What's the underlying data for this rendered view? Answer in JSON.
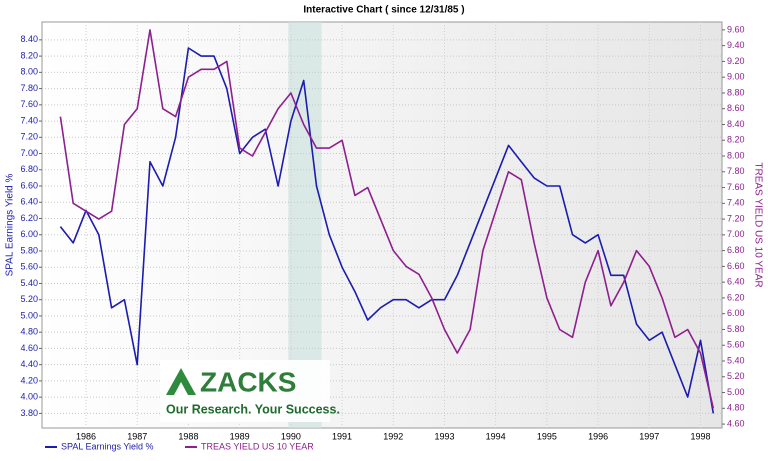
{
  "chart_data": {
    "type": "line",
    "title": "Interactive Chart ( since 12/31/85 )",
    "ylabel": "SPAL Earnings Yield %",
    "y2label": "TREAS YIELD US 10 YEAR",
    "annotations": [
      "ZACKS",
      "Our Research. Your Success."
    ],
    "highlight_range": [
      1990.45,
      1991.1
    ],
    "grid": true,
    "legend": "bottom",
    "x": [
      1986.0,
      1986.25,
      1986.5,
      1986.75,
      1987.0,
      1987.25,
      1987.5,
      1987.75,
      1988.0,
      1988.25,
      1988.5,
      1988.75,
      1989.0,
      1989.25,
      1989.5,
      1989.75,
      1990.0,
      1990.25,
      1990.5,
      1990.75,
      1991.0,
      1991.25,
      1991.5,
      1991.75,
      1992.0,
      1992.25,
      1992.5,
      1992.75,
      1993.0,
      1993.25,
      1993.5,
      1993.75,
      1994.0,
      1994.25,
      1994.5,
      1994.75,
      1995.0,
      1995.25,
      1995.5,
      1995.75,
      1996.0,
      1996.25,
      1996.5,
      1996.75,
      1997.0,
      1997.25,
      1997.5,
      1997.75,
      1998.0,
      1998.25,
      1998.5,
      1998.75
    ],
    "xlim": [
      1985.64,
      1998.92
    ],
    "xticks": [
      {
        "value": 1986.5,
        "label": "1986"
      },
      {
        "value": 1987.5,
        "label": "1987"
      },
      {
        "value": 1988.5,
        "label": "1988"
      },
      {
        "value": 1989.5,
        "label": "1989"
      },
      {
        "value": 1990.5,
        "label": "1990"
      },
      {
        "value": 1991.5,
        "label": "1991"
      },
      {
        "value": 1992.5,
        "label": "1992"
      },
      {
        "value": 1993.5,
        "label": "1993"
      },
      {
        "value": 1994.5,
        "label": "1994"
      },
      {
        "value": 1995.5,
        "label": "1995"
      },
      {
        "value": 1996.5,
        "label": "1996"
      },
      {
        "value": 1997.5,
        "label": "1997"
      },
      {
        "value": 1998.5,
        "label": "1998"
      }
    ],
    "ylim": [
      3.62,
      8.62
    ],
    "yticks": [
      {
        "value": 3.8,
        "label": "3.80"
      },
      {
        "value": 4.0,
        "label": "4.00"
      },
      {
        "value": 4.2,
        "label": "4.20"
      },
      {
        "value": 4.4,
        "label": "4.40"
      },
      {
        "value": 4.6,
        "label": "4.60"
      },
      {
        "value": 4.8,
        "label": "4.80"
      },
      {
        "value": 5.0,
        "label": "5.00"
      },
      {
        "value": 5.2,
        "label": "5.20"
      },
      {
        "value": 5.4,
        "label": "5.40"
      },
      {
        "value": 5.6,
        "label": "5.60"
      },
      {
        "value": 5.8,
        "label": "5.80"
      },
      {
        "value": 6.0,
        "label": "6.00"
      },
      {
        "value": 6.2,
        "label": "6.20"
      },
      {
        "value": 6.4,
        "label": "6.40"
      },
      {
        "value": 6.6,
        "label": "6.60"
      },
      {
        "value": 6.8,
        "label": "6.80"
      },
      {
        "value": 7.0,
        "label": "7.00"
      },
      {
        "value": 7.2,
        "label": "7.20"
      },
      {
        "value": 7.4,
        "label": "7.40"
      },
      {
        "value": 7.6,
        "label": "7.60"
      },
      {
        "value": 7.8,
        "label": "7.80"
      },
      {
        "value": 8.0,
        "label": "8.00"
      },
      {
        "value": 8.2,
        "label": "8.20"
      },
      {
        "value": 8.4,
        "label": "8.40"
      }
    ],
    "y2lim": [
      4.55,
      9.7
    ],
    "y2ticks": [
      {
        "value": 4.6,
        "label": "4.60"
      },
      {
        "value": 4.8,
        "label": "4.80"
      },
      {
        "value": 5.0,
        "label": "5.00"
      },
      {
        "value": 5.2,
        "label": "5.20"
      },
      {
        "value": 5.4,
        "label": "5.40"
      },
      {
        "value": 5.6,
        "label": "5.60"
      },
      {
        "value": 5.8,
        "label": "5.80"
      },
      {
        "value": 6.0,
        "label": "6.00"
      },
      {
        "value": 6.2,
        "label": "6.20"
      },
      {
        "value": 6.4,
        "label": "6.40"
      },
      {
        "value": 6.6,
        "label": "6.60"
      },
      {
        "value": 6.8,
        "label": "6.80"
      },
      {
        "value": 7.0,
        "label": "7.00"
      },
      {
        "value": 7.2,
        "label": "7.20"
      },
      {
        "value": 7.4,
        "label": "7.40"
      },
      {
        "value": 7.6,
        "label": "7.60"
      },
      {
        "value": 7.8,
        "label": "7.80"
      },
      {
        "value": 8.0,
        "label": "8.00"
      },
      {
        "value": 8.2,
        "label": "8.20"
      },
      {
        "value": 8.4,
        "label": "8.40"
      },
      {
        "value": 8.6,
        "label": "8.60"
      },
      {
        "value": 8.8,
        "label": "8.80"
      },
      {
        "value": 9.0,
        "label": "9.00"
      },
      {
        "value": 9.2,
        "label": "9.20"
      },
      {
        "value": 9.4,
        "label": "9.40"
      },
      {
        "value": 9.6,
        "label": "9.60"
      }
    ],
    "series": [
      {
        "name": "SPAL Earnings Yield %",
        "color": "#1c1cae",
        "values": [
          6.1,
          5.9,
          6.3,
          6.0,
          5.1,
          5.2,
          4.4,
          6.9,
          6.6,
          7.2,
          8.3,
          8.2,
          8.2,
          7.8,
          7.0,
          7.2,
          7.3,
          6.6,
          7.4,
          7.9,
          6.6,
          6.0,
          5.6,
          5.3,
          4.95,
          5.1,
          5.2,
          5.2,
          5.1,
          5.2,
          5.2,
          5.5,
          5.9,
          6.3,
          6.7,
          7.1,
          6.9,
          6.7,
          6.6,
          6.6,
          6.0,
          5.9,
          6.0,
          5.5,
          5.5,
          4.9,
          4.7,
          4.8,
          4.4,
          4.0,
          4.7,
          3.8
        ]
      },
      {
        "name": "TREAS YIELD US 10 YEAR",
        "color": "#8e1f8e",
        "axis": "y2",
        "values": [
          8.5,
          7.4,
          7.3,
          7.2,
          7.3,
          8.4,
          8.6,
          9.6,
          8.6,
          8.5,
          9.0,
          9.1,
          9.1,
          9.2,
          8.1,
          8.0,
          8.3,
          8.6,
          8.8,
          8.4,
          8.1,
          8.1,
          8.2,
          7.5,
          7.6,
          7.2,
          6.8,
          6.6,
          6.5,
          6.2,
          5.8,
          5.5,
          5.8,
          6.8,
          7.3,
          7.8,
          7.7,
          6.9,
          6.2,
          5.8,
          5.7,
          6.4,
          6.8,
          6.1,
          6.4,
          6.8,
          6.6,
          6.2,
          5.7,
          5.8,
          5.5,
          4.8
        ]
      }
    ]
  }
}
